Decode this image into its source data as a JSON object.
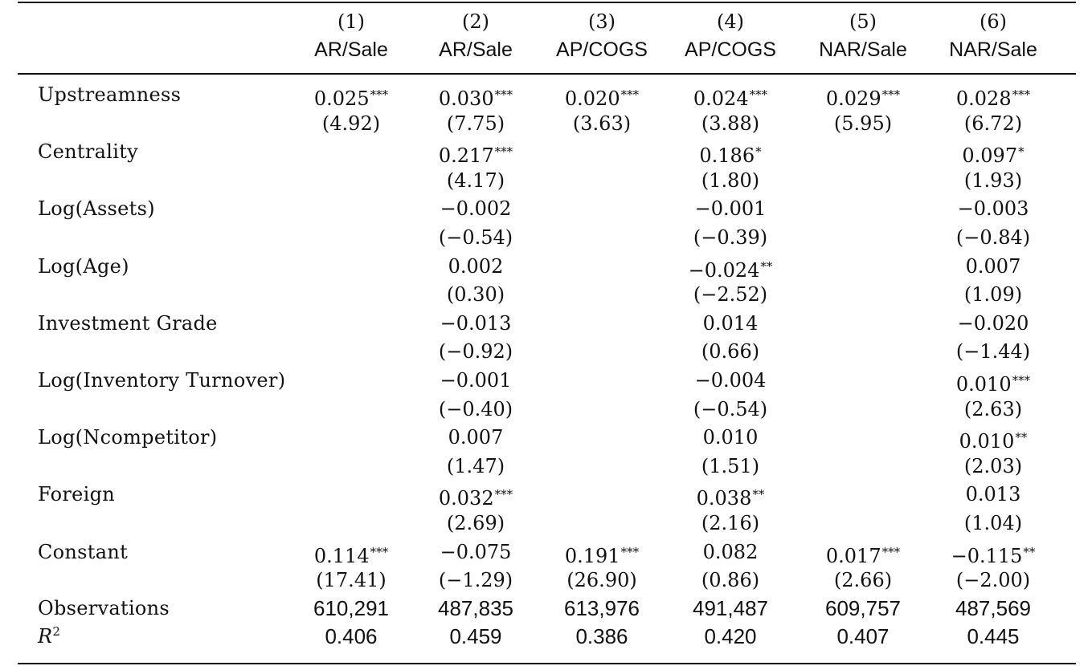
{
  "columns": [
    {
      "num": "(1)",
      "label": "AR/Sale"
    },
    {
      "num": "(2)",
      "label": "AR/Sale"
    },
    {
      "num": "(3)",
      "label": "AP/COGS"
    },
    {
      "num": "(4)",
      "label": "AP/COGS"
    },
    {
      "num": "(5)",
      "label": "NAR/Sale"
    },
    {
      "num": "(6)",
      "label": "NAR/Sale"
    }
  ],
  "rows": [
    {
      "label": "Upstreamness",
      "coef": [
        "0.025",
        "0.030",
        "0.020",
        "0.024",
        "0.029",
        "0.028"
      ],
      "stars": [
        "***",
        "***",
        "***",
        "***",
        "***",
        "***"
      ],
      "tstat": [
        "(4.92)",
        "(7.75)",
        "(3.63)",
        "(3.88)",
        "(5.95)",
        "(6.72)"
      ]
    },
    {
      "label": "Centrality",
      "coef": [
        "",
        "0.217",
        "",
        "0.186",
        "",
        "0.097"
      ],
      "stars": [
        "",
        "***",
        "",
        "*",
        "",
        "*"
      ],
      "tstat": [
        "",
        "(4.17)",
        "",
        "(1.80)",
        "",
        "(1.93)"
      ]
    },
    {
      "label": "Log(Assets)",
      "coef": [
        "",
        "−0.002",
        "",
        "−0.001",
        "",
        "−0.003"
      ],
      "stars": [
        "",
        "",
        "",
        "",
        "",
        ""
      ],
      "tstat": [
        "",
        "(−0.54)",
        "",
        "(−0.39)",
        "",
        "(−0.84)"
      ]
    },
    {
      "label": "Log(Age)",
      "coef": [
        "",
        "0.002",
        "",
        "−0.024",
        "",
        "0.007"
      ],
      "stars": [
        "",
        "",
        "",
        "**",
        "",
        ""
      ],
      "tstat": [
        "",
        "(0.30)",
        "",
        "(−2.52)",
        "",
        "(1.09)"
      ]
    },
    {
      "label": "Investment Grade",
      "coef": [
        "",
        "−0.013",
        "",
        "0.014",
        "",
        "−0.020"
      ],
      "stars": [
        "",
        "",
        "",
        "",
        "",
        ""
      ],
      "tstat": [
        "",
        "(−0.92)",
        "",
        "(0.66)",
        "",
        "(−1.44)"
      ]
    },
    {
      "label": "Log(Inventory Turnover)",
      "coef": [
        "",
        "−0.001",
        "",
        "−0.004",
        "",
        "0.010"
      ],
      "stars": [
        "",
        "",
        "",
        "",
        "",
        "***"
      ],
      "tstat": [
        "",
        "(−0.40)",
        "",
        "(−0.54)",
        "",
        "(2.63)"
      ]
    },
    {
      "label": "Log(Ncompetitor)",
      "coef": [
        "",
        "0.007",
        "",
        "0.010",
        "",
        "0.010"
      ],
      "stars": [
        "",
        "",
        "",
        "",
        "",
        "**"
      ],
      "tstat": [
        "",
        "(1.47)",
        "",
        "(1.51)",
        "",
        "(2.03)"
      ]
    },
    {
      "label": "Foreign",
      "coef": [
        "",
        "0.032",
        "",
        "0.038",
        "",
        "0.013"
      ],
      "stars": [
        "",
        "***",
        "",
        "**",
        "",
        ""
      ],
      "tstat": [
        "",
        "(2.69)",
        "",
        "(2.16)",
        "",
        "(1.04)"
      ]
    },
    {
      "label": "Constant",
      "coef": [
        "0.114",
        "−0.075",
        "0.191",
        "0.082",
        "0.017",
        "−0.115"
      ],
      "stars": [
        "***",
        "",
        "***",
        "",
        "***",
        "**"
      ],
      "tstat": [
        "(17.41)",
        "(−1.29)",
        "(26.90)",
        "(0.86)",
        "(2.66)",
        "(−2.00)"
      ]
    }
  ],
  "observations": {
    "label": "Observations",
    "values": [
      "610,291",
      "487,835",
      "613,976",
      "491,487",
      "609,757",
      "487,569"
    ]
  },
  "r_squared": {
    "label": "R",
    "sup": "2",
    "values": [
      "0.406",
      "0.459",
      "0.386",
      "0.420",
      "0.407",
      "0.445"
    ]
  }
}
